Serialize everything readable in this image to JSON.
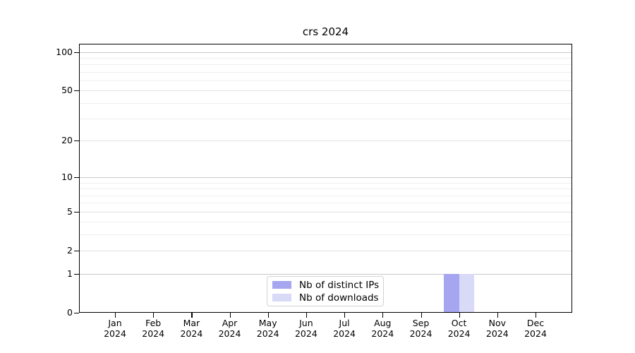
{
  "chart_data": {
    "type": "bar",
    "title": "crs 2024",
    "categories": [
      "Jan",
      "Feb",
      "Mar",
      "Apr",
      "May",
      "Jun",
      "Jul",
      "Aug",
      "Sep",
      "Oct",
      "Nov",
      "Dec"
    ],
    "year_label": "2024",
    "series": [
      {
        "name": "Nb of distinct IPs",
        "color": "#a5a5f0",
        "values": [
          0,
          0,
          0,
          0,
          0,
          0,
          0,
          0,
          0,
          1,
          0,
          0
        ]
      },
      {
        "name": "Nb of downloads",
        "color": "#d9d9f8",
        "values": [
          0,
          0,
          0,
          0,
          0,
          0,
          0,
          0,
          0,
          1,
          0,
          0
        ]
      }
    ],
    "y_axis": {
      "scale": "log2(1+x)",
      "tick_labels": [
        0,
        1,
        2,
        5,
        10,
        20,
        50,
        100
      ],
      "gridline_values": [
        1,
        2,
        3,
        4,
        5,
        6,
        7,
        8,
        9,
        10,
        20,
        30,
        40,
        50,
        60,
        70,
        80,
        90,
        100
      ],
      "major_gridlines": [
        1,
        10,
        100
      ],
      "mid_gridlines": [
        2,
        5,
        20,
        50
      ],
      "ylim": [
        0,
        113
      ]
    },
    "x_axis": {
      "label_format": "month over year"
    },
    "legend": {
      "position": "bottom-center-inside"
    },
    "grid": "horizontal",
    "colors": {
      "axis": "#000000",
      "grid_major": "#c9c9c9",
      "grid_minor": "#efefef",
      "background": "#ffffff",
      "legend_border": "#d2d2d2"
    }
  }
}
